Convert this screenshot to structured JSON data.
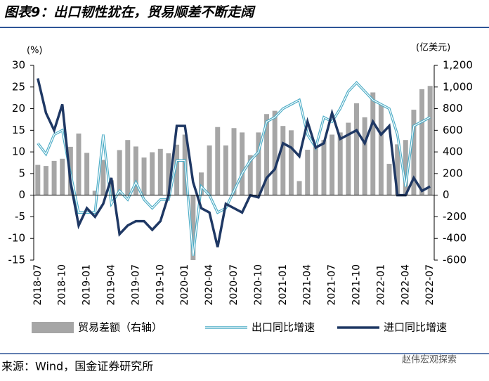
{
  "title": "图表9：出口韧性犹在，贸易顺差不断走阔",
  "source": "来源：Wind，国金证券研究所",
  "watermark": "赵伟宏观探索",
  "chart_data": {
    "type": "bar_line",
    "y_label": "(%)",
    "y2_label": "(亿美元)",
    "categories": [
      "2018-07",
      null,
      null,
      "2018-10",
      null,
      null,
      "2019-01",
      null,
      null,
      "2019-04",
      null,
      null,
      "2019-07",
      null,
      null,
      "2019-10",
      null,
      null,
      "2020-01",
      null,
      null,
      "2020-04",
      null,
      null,
      "2020-07",
      null,
      null,
      "2020-10",
      null,
      null,
      "2021-01",
      null,
      null,
      "2021-04",
      null,
      null,
      "2021-07",
      null,
      null,
      "2021-10",
      null,
      null,
      "2022-01",
      null,
      null,
      "2022-04",
      null,
      null,
      "2022-07"
    ],
    "ylim": [
      -15,
      30
    ],
    "yticks": [
      -15,
      -10,
      -5,
      0,
      5,
      10,
      15,
      20,
      25,
      30
    ],
    "y2lim": [
      -600,
      1200
    ],
    "y2ticks": [
      -600,
      -400,
      -200,
      0,
      200,
      400,
      600,
      800,
      {
        "value": 1000,
        "label": "1,000"
      },
      {
        "value": 1200,
        "label": "1,200"
      }
    ],
    "series": [
      {
        "name": "贸易差额（右轴）",
        "type": "bar",
        "axis": "y2",
        "color": "#a6a6a6",
        "values": [
          280,
          270,
          317,
          337,
          447,
          570,
          391,
          41,
          326,
          138,
          417,
          510,
          450,
          348,
          397,
          428,
          387,
          467,
          560,
          -600,
          210,
          460,
          630,
          460,
          620,
          580,
          370,
          580,
          750,
          780,
          640,
          600,
          130,
          420,
          450,
          510,
          560,
          580,
          670,
          850,
          720,
          950,
          840,
          290,
          470,
          510,
          790,
          980,
          1010
        ]
      },
      {
        "name": "出口同比增速",
        "type": "line",
        "color": "#4bacc6",
        "values": [
          12,
          9.5,
          14,
          15,
          5,
          -4,
          -4,
          -4,
          14,
          -2,
          1,
          -1,
          3,
          -1,
          -3,
          -1,
          -1,
          8,
          8,
          -14,
          2,
          0,
          -4,
          -3,
          1,
          5,
          8,
          10,
          17,
          18,
          20,
          21,
          22,
          14,
          11,
          18,
          17,
          20,
          24,
          26,
          24,
          22,
          21,
          20,
          14,
          2,
          16,
          17,
          18
        ]
      },
      {
        "name": "进口同比增速",
        "type": "line",
        "color": "#1f3864",
        "values": [
          27,
          19,
          15,
          21,
          3,
          -7,
          -3,
          -5,
          -2,
          4,
          -9,
          -7,
          -6,
          -6,
          -8,
          -6,
          0,
          16,
          16,
          3,
          -3,
          -4,
          -12,
          -2,
          -3,
          -4,
          0,
          -0.5,
          4,
          6,
          12,
          11,
          9,
          17,
          11,
          12,
          19,
          13,
          14,
          15,
          12,
          17,
          14,
          16,
          0,
          0,
          4,
          1,
          2
        ]
      }
    ]
  }
}
